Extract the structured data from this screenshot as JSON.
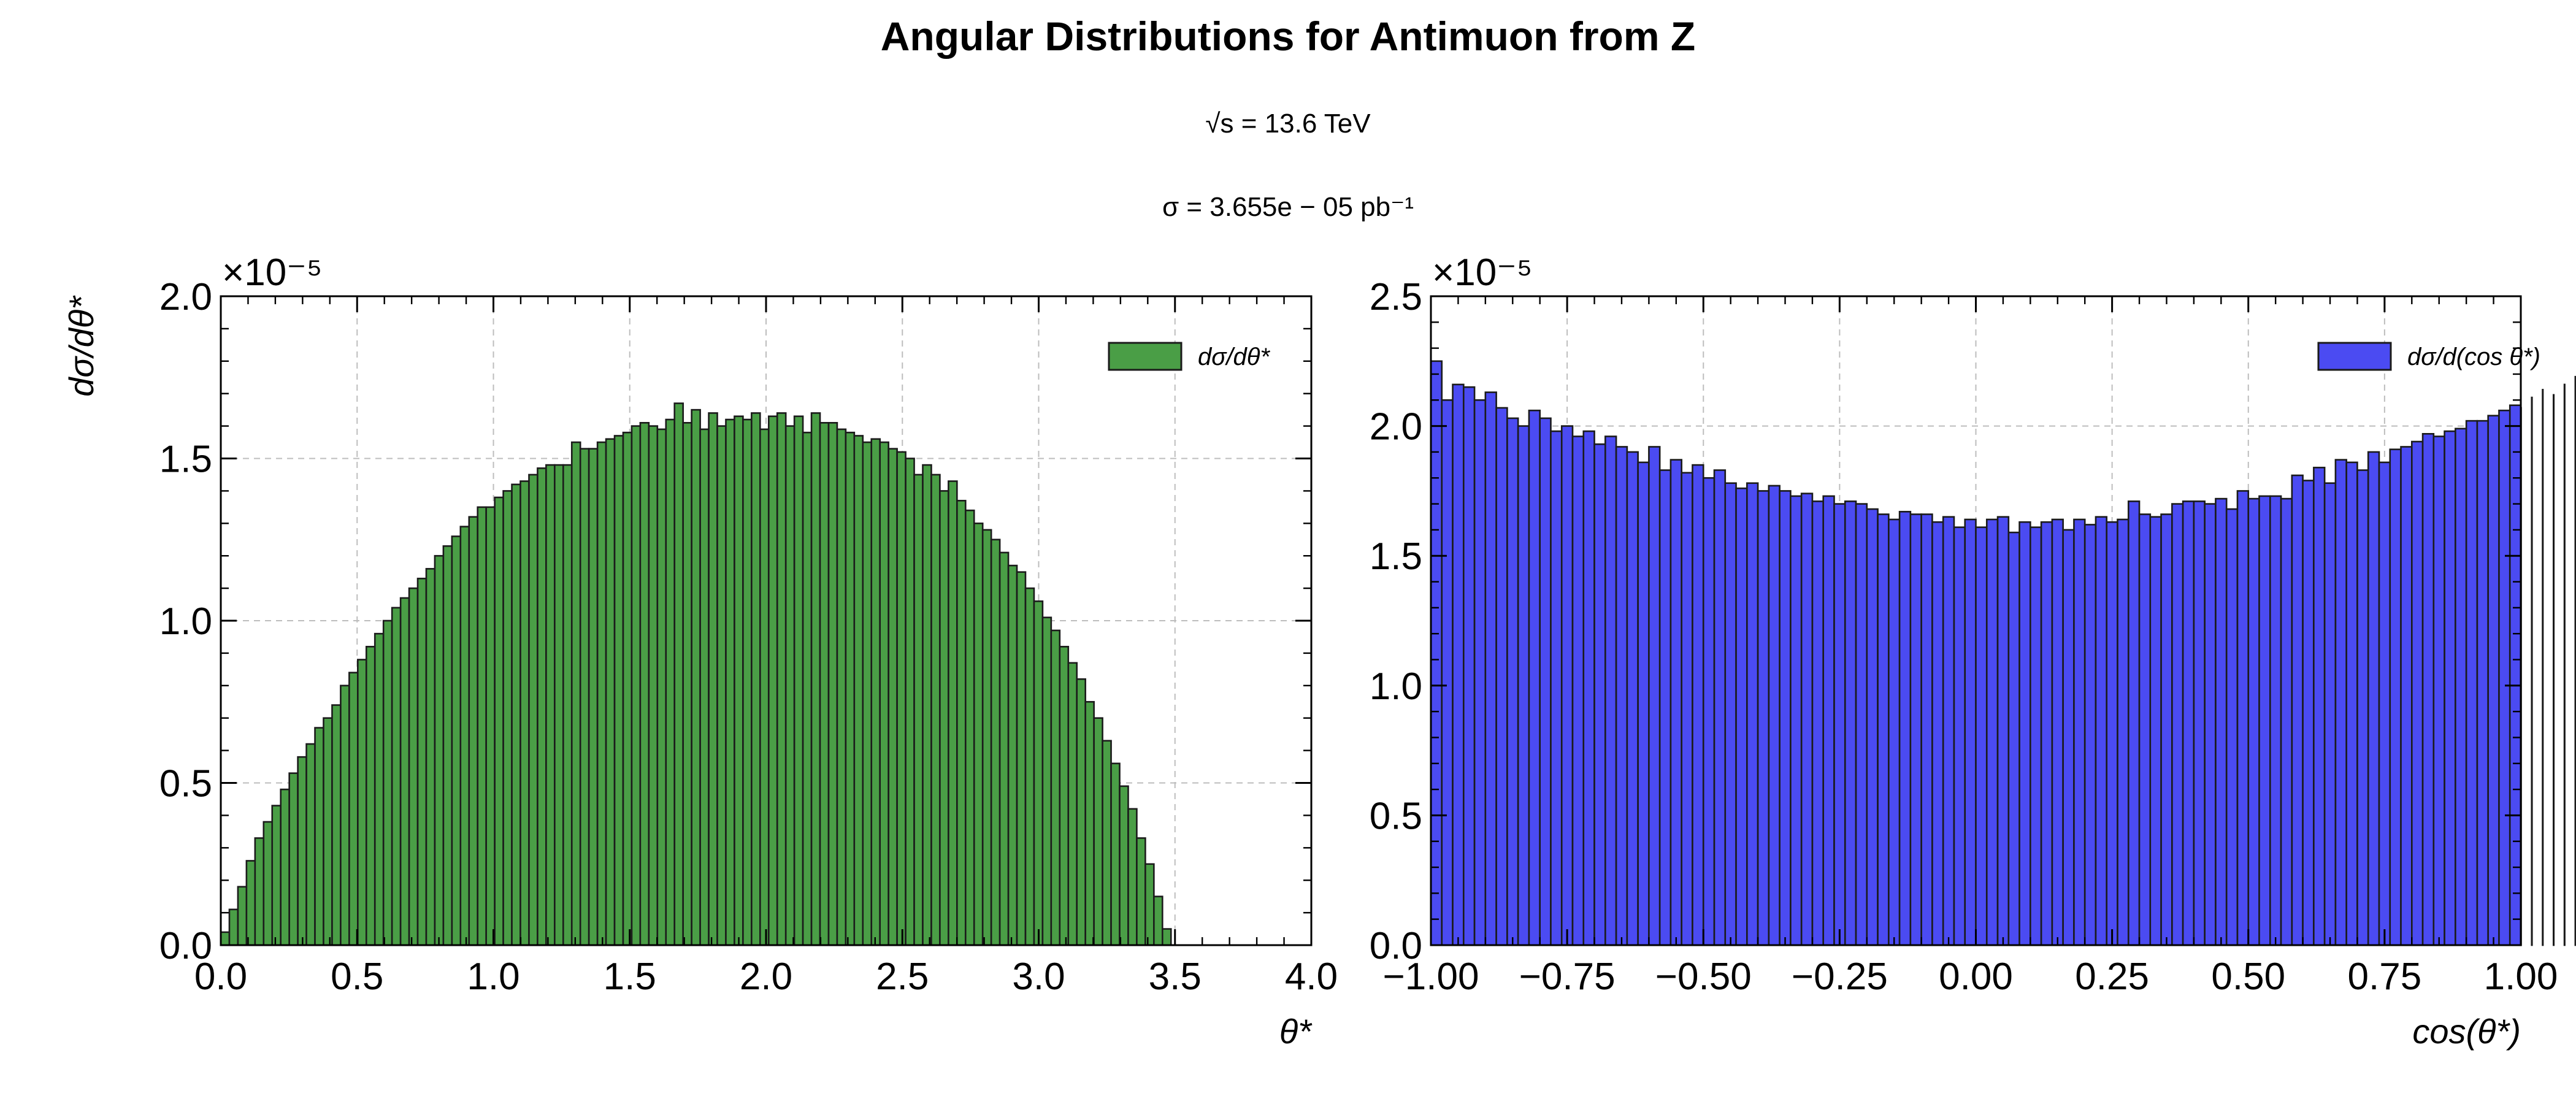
{
  "figure": {
    "title": "Angular Distributions for Antimuon from Z",
    "subtitle1": "√s = 13.6 TeV",
    "subtitle2": "σ = 3.655e − 05 pb⁻¹"
  },
  "chart_data": [
    {
      "type": "bar",
      "title": "",
      "xlabel": "θ*",
      "ylabel": "dσ/dθ*",
      "multiplier": "×10⁻⁵",
      "legend": "dσ/dθ*",
      "legend_position": "top-right",
      "color": "#4a9e46",
      "edge_color": "#1b1b1b",
      "grid": true,
      "xlim": [
        0.0,
        4.0
      ],
      "ylim": [
        0.0,
        2.0
      ],
      "xticks": [
        "0.0",
        "0.5",
        "1.0",
        "1.5",
        "2.0",
        "2.5",
        "3.0",
        "3.5",
        "4.0"
      ],
      "yticks": [
        "0.0",
        "0.5",
        "1.0",
        "1.5",
        "2.0"
      ],
      "bin_start": 0.0,
      "bin_width": 0.0314,
      "values": [
        0.04,
        0.11,
        0.18,
        0.26,
        0.33,
        0.38,
        0.43,
        0.48,
        0.53,
        0.58,
        0.62,
        0.67,
        0.7,
        0.74,
        0.8,
        0.84,
        0.88,
        0.92,
        0.96,
        1.0,
        1.04,
        1.07,
        1.1,
        1.13,
        1.16,
        1.2,
        1.23,
        1.26,
        1.29,
        1.32,
        1.35,
        1.35,
        1.38,
        1.4,
        1.42,
        1.43,
        1.45,
        1.47,
        1.48,
        1.48,
        1.48,
        1.55,
        1.53,
        1.53,
        1.55,
        1.56,
        1.57,
        1.58,
        1.6,
        1.61,
        1.6,
        1.59,
        1.62,
        1.67,
        1.61,
        1.65,
        1.59,
        1.64,
        1.6,
        1.62,
        1.63,
        1.62,
        1.64,
        1.59,
        1.63,
        1.64,
        1.6,
        1.63,
        1.58,
        1.64,
        1.61,
        1.61,
        1.59,
        1.58,
        1.57,
        1.55,
        1.56,
        1.55,
        1.53,
        1.52,
        1.5,
        1.45,
        1.48,
        1.45,
        1.4,
        1.43,
        1.37,
        1.34,
        1.3,
        1.28,
        1.25,
        1.21,
        1.17,
        1.15,
        1.1,
        1.06,
        1.01,
        0.97,
        0.92,
        0.87,
        0.82,
        0.75,
        0.7,
        0.63,
        0.56,
        0.49,
        0.42,
        0.33,
        0.25,
        0.15,
        0.05,
        0.0
      ]
    },
    {
      "type": "bar",
      "title": "",
      "xlabel": "cos(θ*)",
      "ylabel": "",
      "multiplier": "×10⁻⁵",
      "legend": "dσ/d(cos θ*)",
      "legend_position": "top-right",
      "color": "#4b4bf2",
      "edge_color": "#1b1b1b",
      "grid": true,
      "xlim": [
        -1.0,
        1.0
      ],
      "ylim": [
        0.0,
        2.5
      ],
      "xticks": [
        "−1.00",
        "−0.75",
        "−0.50",
        "−0.25",
        "0.00",
        "0.25",
        "0.50",
        "0.75",
        "1.00"
      ],
      "yticks": [
        "0.0",
        "0.5",
        "1.0",
        "1.5",
        "2.0",
        "2.5"
      ],
      "bin_start": -1.0,
      "bin_width": 0.02,
      "values": [
        2.25,
        2.1,
        2.16,
        2.15,
        2.1,
        2.13,
        2.07,
        2.03,
        2.0,
        2.06,
        2.03,
        1.98,
        2.0,
        1.96,
        1.98,
        1.93,
        1.96,
        1.92,
        1.9,
        1.86,
        1.92,
        1.83,
        1.87,
        1.82,
        1.85,
        1.8,
        1.83,
        1.78,
        1.76,
        1.78,
        1.75,
        1.77,
        1.75,
        1.73,
        1.74,
        1.71,
        1.73,
        1.7,
        1.71,
        1.7,
        1.68,
        1.66,
        1.64,
        1.67,
        1.66,
        1.66,
        1.63,
        1.65,
        1.61,
        1.64,
        1.61,
        1.64,
        1.65,
        1.59,
        1.63,
        1.61,
        1.63,
        1.64,
        1.6,
        1.64,
        1.62,
        1.65,
        1.63,
        1.64,
        1.71,
        1.66,
        1.65,
        1.66,
        1.7,
        1.71,
        1.71,
        1.7,
        1.72,
        1.68,
        1.75,
        1.72,
        1.73,
        1.73,
        1.72,
        1.81,
        1.79,
        1.84,
        1.78,
        1.87,
        1.86,
        1.83,
        1.9,
        1.86,
        1.91,
        1.92,
        1.94,
        1.97,
        1.96,
        1.98,
        1.99,
        2.02,
        2.02,
        2.04,
        2.06,
        2.08,
        2.07,
        2.11,
        2.14,
        2.12,
        2.16,
        2.19,
        2.14,
        2.2,
        2.22,
        2.26,
        2.3
      ]
    }
  ]
}
